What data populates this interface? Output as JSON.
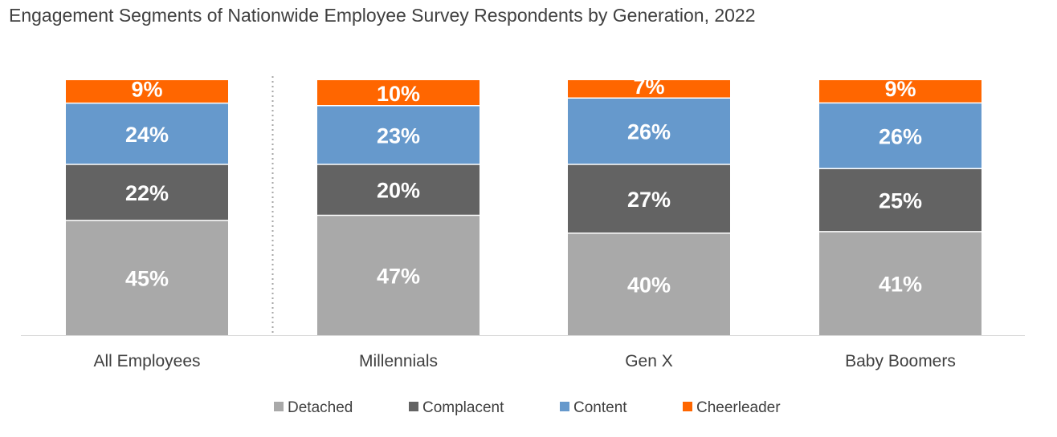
{
  "chart_data": {
    "type": "bar",
    "stacked": true,
    "normalized": true,
    "title": "Engagement Segments of Nationwide Employee Survey Respondents by Generation, 2022",
    "xlabel": "",
    "ylabel": "",
    "ylim": [
      0,
      100
    ],
    "grid": false,
    "categories": [
      "All Employees",
      "Millennials",
      "Gen X",
      "Baby Boomers"
    ],
    "series": [
      {
        "name": "Detached",
        "color": "#a9a9a9",
        "values": [
          45,
          47,
          40,
          41
        ],
        "labels": [
          "45%",
          "47%",
          "40%",
          "41%"
        ]
      },
      {
        "name": "Complacent",
        "color": "#636363",
        "values": [
          22,
          20,
          27,
          25
        ],
        "labels": [
          "22%",
          "20%",
          "27%",
          "25%"
        ]
      },
      {
        "name": "Content",
        "color": "#6699cc",
        "values": [
          24,
          23,
          26,
          26
        ],
        "labels": [
          "24%",
          "23%",
          "26%",
          "26%"
        ]
      },
      {
        "name": "Cheerleader",
        "color": "#ff6600",
        "values": [
          9,
          10,
          7,
          9
        ],
        "labels": [
          "9%",
          "10%",
          "7%",
          "9%"
        ]
      }
    ],
    "legend_position": "bottom",
    "separator_after_category": "All Employees"
  }
}
